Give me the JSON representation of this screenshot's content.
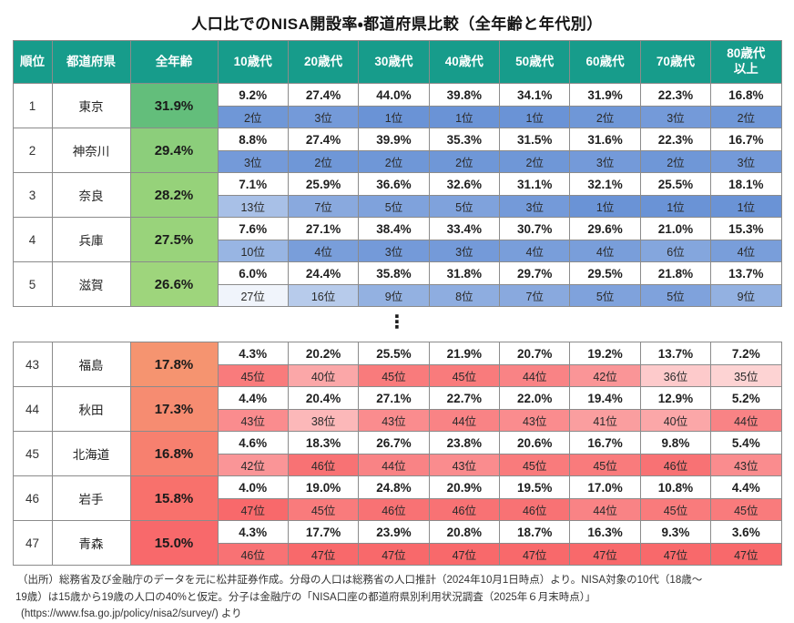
{
  "title": "人口比でのNISA開設率・都道府県比較（全年齢と年代別）",
  "colors": {
    "header_bg": "#179c8b",
    "header_text": "#ffffff",
    "border": "#8b8b8b",
    "rank_best_blue": "#6A93D6",
    "rank_worst_red": "#F8696B",
    "rank_neutral": "#FFFFFF",
    "rank_mid_rank": 30,
    "overall_best_green": "#63BE7B"
  },
  "chart_data": {
    "type": "table",
    "title": "人口比でのNISA開設率・都道府県比較（全年齢と年代別）",
    "columns": [
      "順位",
      "都道府県",
      "全年齢",
      "10歳代",
      "20歳代",
      "30歳代",
      "40歳代",
      "50歳代",
      "60歳代",
      "70歳代",
      "80歳代\n以上"
    ],
    "rank_suffix": "位",
    "separator": "⋮",
    "top_rows": [
      {
        "rank": "1",
        "prefecture": "東京",
        "overall": "31.9%",
        "overall_color": "#63BE7B",
        "values": [
          "9.2%",
          "27.4%",
          "44.0%",
          "39.8%",
          "34.1%",
          "31.9%",
          "22.3%",
          "16.8%"
        ],
        "ranks": [
          2,
          3,
          1,
          1,
          1,
          2,
          3,
          2
        ]
      },
      {
        "rank": "2",
        "prefecture": "神奈川",
        "overall": "29.4%",
        "overall_color": "#8CCE7B",
        "values": [
          "8.8%",
          "27.4%",
          "39.9%",
          "35.3%",
          "31.5%",
          "31.6%",
          "22.3%",
          "16.7%"
        ],
        "ranks": [
          3,
          2,
          2,
          2,
          2,
          3,
          2,
          3
        ]
      },
      {
        "rank": "3",
        "prefecture": "奈良",
        "overall": "28.2%",
        "overall_color": "#96D27A",
        "values": [
          "7.1%",
          "25.9%",
          "36.6%",
          "32.6%",
          "31.1%",
          "32.1%",
          "25.5%",
          "18.1%"
        ],
        "ranks": [
          13,
          7,
          5,
          5,
          3,
          1,
          1,
          1
        ]
      },
      {
        "rank": "4",
        "prefecture": "兵庫",
        "overall": "27.5%",
        "overall_color": "#99D37B",
        "values": [
          "7.6%",
          "27.1%",
          "38.4%",
          "33.4%",
          "30.7%",
          "29.6%",
          "21.0%",
          "15.3%"
        ],
        "ranks": [
          10,
          4,
          3,
          3,
          4,
          4,
          6,
          4
        ]
      },
      {
        "rank": "5",
        "prefecture": "滋賀",
        "overall": "26.6%",
        "overall_color": "#9ED57C",
        "values": [
          "6.0%",
          "24.4%",
          "35.8%",
          "31.8%",
          "29.7%",
          "29.5%",
          "21.8%",
          "13.7%"
        ],
        "ranks": [
          27,
          16,
          9,
          8,
          7,
          5,
          5,
          9
        ]
      }
    ],
    "bottom_rows": [
      {
        "rank": "43",
        "prefecture": "福島",
        "overall": "17.8%",
        "overall_color": "#F59470",
        "values": [
          "4.3%",
          "20.2%",
          "25.5%",
          "21.9%",
          "20.7%",
          "19.2%",
          "13.7%",
          "7.2%"
        ],
        "ranks": [
          45,
          40,
          45,
          45,
          44,
          42,
          36,
          35
        ]
      },
      {
        "rank": "44",
        "prefecture": "秋田",
        "overall": "17.3%",
        "overall_color": "#F68C71",
        "values": [
          "4.4%",
          "20.4%",
          "27.1%",
          "22.7%",
          "22.0%",
          "19.4%",
          "12.9%",
          "5.2%"
        ],
        "ranks": [
          43,
          38,
          43,
          44,
          43,
          41,
          40,
          44
        ]
      },
      {
        "rank": "45",
        "prefecture": "北海道",
        "overall": "16.8%",
        "overall_color": "#F7806F",
        "values": [
          "4.6%",
          "18.3%",
          "26.7%",
          "23.8%",
          "20.6%",
          "16.7%",
          "9.8%",
          "5.4%"
        ],
        "ranks": [
          42,
          46,
          44,
          43,
          45,
          45,
          46,
          43
        ]
      },
      {
        "rank": "46",
        "prefecture": "岩手",
        "overall": "15.8%",
        "overall_color": "#F8716C",
        "values": [
          "4.0%",
          "19.0%",
          "24.8%",
          "20.9%",
          "19.5%",
          "17.0%",
          "10.8%",
          "4.4%"
        ],
        "ranks": [
          47,
          45,
          46,
          46,
          46,
          44,
          45,
          45
        ]
      },
      {
        "rank": "47",
        "prefecture": "青森",
        "overall": "15.0%",
        "overall_color": "#F8696B",
        "values": [
          "4.3%",
          "17.7%",
          "23.9%",
          "20.8%",
          "18.7%",
          "16.3%",
          "9.3%",
          "3.6%"
        ],
        "ranks": [
          46,
          47,
          47,
          47,
          47,
          47,
          47,
          47
        ]
      }
    ]
  },
  "footer": {
    "line1": "（出所）総務省及び金融庁のデータを元に松井証券作成。分母の人口は総務省の人口推計（2024年10月1日時点）より。NISA対象の10代（18歳～",
    "line2": "19歳）は15歳から19歳の人口の40%と仮定。分子は金融庁の「NISA口座の都道府県別利用状況調査（2025年６月末時点）」",
    "line3": "(https://www.fsa.go.jp/policy/nisa2/survey/) より"
  }
}
